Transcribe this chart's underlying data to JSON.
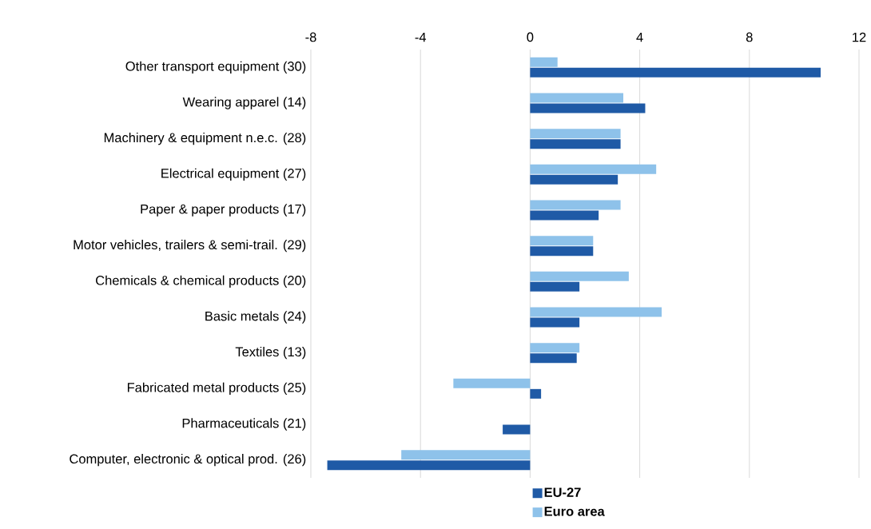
{
  "chart_data": {
    "type": "bar",
    "orientation": "horizontal",
    "categories": [
      "Other transport equipment (30)",
      "Wearing apparel (14)",
      "Machinery & equipment n.e.c. (28)",
      "Electrical equipment (27)",
      "Paper & paper products (17)",
      "Motor vehicles, trailers & semi-trail. (29)",
      "Chemicals & chemical products (20)",
      "Basic metals (24)",
      "Textiles (13)",
      "Fabricated metal products (25)",
      "Pharmaceuticals (21)",
      "Computer, electronic & optical prod. (26)"
    ],
    "series": [
      {
        "name": "EU-27",
        "color": "#1f5aa6",
        "values": [
          10.6,
          4.2,
          3.3,
          3.2,
          2.5,
          2.3,
          1.8,
          1.8,
          1.7,
          0.4,
          -1.0,
          -7.4
        ]
      },
      {
        "name": "Euro area",
        "color": "#8ec2ea",
        "values": [
          1.0,
          3.4,
          3.3,
          4.6,
          3.3,
          2.3,
          3.6,
          4.8,
          1.8,
          -2.8,
          null,
          -4.7
        ]
      }
    ],
    "xlim": [
      -8,
      12
    ],
    "xticks": [
      -8,
      -4,
      0,
      4,
      8,
      12
    ],
    "grid": "x",
    "legend": "bottom"
  }
}
